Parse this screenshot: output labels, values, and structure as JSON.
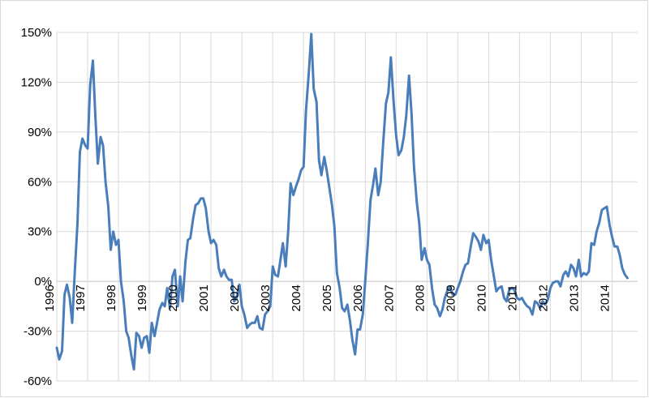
{
  "chart_data": {
    "type": "line",
    "title": "",
    "xlabel": "",
    "ylabel": "",
    "x_range": [
      1996.0,
      2014.83
    ],
    "ylim": [
      -60,
      150
    ],
    "y_ticks": [
      -60,
      -30,
      0,
      30,
      60,
      90,
      120,
      150
    ],
    "y_tick_labels": [
      "-60%",
      "-30%",
      "0%",
      "30%",
      "60%",
      "90%",
      "120%",
      "150%"
    ],
    "x_ticks": [
      1996,
      1997,
      1998,
      1999,
      2000,
      2001,
      2002,
      2003,
      2004,
      2005,
      2006,
      2007,
      2008,
      2009,
      2010,
      2011,
      2012,
      2013,
      2014
    ],
    "x_tick_labels": [
      "1996",
      "1997",
      "1998",
      "1999",
      "2000",
      "2001",
      "2002",
      "2003",
      "2004",
      "2005",
      "2006",
      "2007",
      "2008",
      "2009",
      "2010",
      "2011",
      "2012",
      "2013",
      "2014"
    ],
    "grid": {
      "horizontal": true,
      "vertical": true
    },
    "legend": "none",
    "series": [
      {
        "color": "#4a7ebb",
        "points": [
          [
            1996.0,
            -40
          ],
          [
            1996.08,
            -47
          ],
          [
            1996.17,
            -42
          ],
          [
            1996.25,
            -8
          ],
          [
            1996.33,
            -2
          ],
          [
            1996.42,
            -10
          ],
          [
            1996.5,
            -25
          ],
          [
            1996.58,
            5
          ],
          [
            1996.67,
            35
          ],
          [
            1996.75,
            78
          ],
          [
            1996.83,
            86
          ],
          [
            1996.92,
            82
          ],
          [
            1997.0,
            80
          ],
          [
            1997.08,
            118
          ],
          [
            1997.17,
            133
          ],
          [
            1997.25,
            100
          ],
          [
            1997.33,
            71
          ],
          [
            1997.42,
            87
          ],
          [
            1997.5,
            82
          ],
          [
            1997.58,
            60
          ],
          [
            1997.67,
            45
          ],
          [
            1997.75,
            19
          ],
          [
            1997.83,
            30
          ],
          [
            1997.92,
            22
          ],
          [
            1998.0,
            25
          ],
          [
            1998.08,
            0
          ],
          [
            1998.17,
            -12
          ],
          [
            1998.25,
            -30
          ],
          [
            1998.33,
            -34
          ],
          [
            1998.42,
            -45
          ],
          [
            1998.5,
            -53
          ],
          [
            1998.58,
            -31
          ],
          [
            1998.67,
            -33
          ],
          [
            1998.75,
            -40
          ],
          [
            1998.83,
            -34
          ],
          [
            1998.92,
            -33
          ],
          [
            1999.0,
            -43
          ],
          [
            1999.08,
            -25
          ],
          [
            1999.17,
            -33
          ],
          [
            1999.25,
            -25
          ],
          [
            1999.33,
            -17
          ],
          [
            1999.42,
            -13
          ],
          [
            1999.5,
            -15
          ],
          [
            1999.58,
            -4
          ],
          [
            1999.67,
            -16
          ],
          [
            1999.75,
            3
          ],
          [
            1999.83,
            7
          ],
          [
            1999.92,
            -15
          ],
          [
            2000.0,
            3
          ],
          [
            2000.08,
            -12
          ],
          [
            2000.17,
            12
          ],
          [
            2000.25,
            25
          ],
          [
            2000.33,
            26
          ],
          [
            2000.42,
            38
          ],
          [
            2000.5,
            46
          ],
          [
            2000.58,
            47
          ],
          [
            2000.67,
            50
          ],
          [
            2000.75,
            50
          ],
          [
            2000.83,
            44
          ],
          [
            2000.92,
            30
          ],
          [
            2001.0,
            23
          ],
          [
            2001.08,
            25
          ],
          [
            2001.17,
            22
          ],
          [
            2001.25,
            8
          ],
          [
            2001.33,
            3
          ],
          [
            2001.42,
            7
          ],
          [
            2001.5,
            3
          ],
          [
            2001.58,
            1
          ],
          [
            2001.67,
            1
          ],
          [
            2001.75,
            -12
          ],
          [
            2001.83,
            -10
          ],
          [
            2001.92,
            -2
          ],
          [
            2002.0,
            -15
          ],
          [
            2002.08,
            -20
          ],
          [
            2002.17,
            -28
          ],
          [
            2002.25,
            -26
          ],
          [
            2002.33,
            -25
          ],
          [
            2002.42,
            -25
          ],
          [
            2002.5,
            -21
          ],
          [
            2002.58,
            -28
          ],
          [
            2002.67,
            -29
          ],
          [
            2002.75,
            -20
          ],
          [
            2002.83,
            -18
          ],
          [
            2002.92,
            -15
          ],
          [
            2003.0,
            9
          ],
          [
            2003.08,
            4
          ],
          [
            2003.17,
            3
          ],
          [
            2003.25,
            13
          ],
          [
            2003.33,
            23
          ],
          [
            2003.42,
            9
          ],
          [
            2003.5,
            30
          ],
          [
            2003.58,
            59
          ],
          [
            2003.67,
            52
          ],
          [
            2003.75,
            57
          ],
          [
            2003.83,
            61
          ],
          [
            2003.92,
            67
          ],
          [
            2004.0,
            69
          ],
          [
            2004.08,
            103
          ],
          [
            2004.17,
            126
          ],
          [
            2004.25,
            149
          ],
          [
            2004.33,
            116
          ],
          [
            2004.42,
            108
          ],
          [
            2004.5,
            73
          ],
          [
            2004.58,
            64
          ],
          [
            2004.67,
            75
          ],
          [
            2004.75,
            67
          ],
          [
            2004.83,
            57
          ],
          [
            2004.92,
            46
          ],
          [
            2005.0,
            33
          ],
          [
            2005.08,
            5
          ],
          [
            2005.17,
            -4
          ],
          [
            2005.25,
            -16
          ],
          [
            2005.33,
            -18
          ],
          [
            2005.42,
            -14
          ],
          [
            2005.5,
            -23
          ],
          [
            2005.58,
            -35
          ],
          [
            2005.67,
            -44
          ],
          [
            2005.75,
            -29
          ],
          [
            2005.83,
            -29
          ],
          [
            2005.92,
            -20
          ],
          [
            2006.0,
            0
          ],
          [
            2006.08,
            22
          ],
          [
            2006.17,
            49
          ],
          [
            2006.25,
            58
          ],
          [
            2006.33,
            68
          ],
          [
            2006.42,
            52
          ],
          [
            2006.5,
            60
          ],
          [
            2006.58,
            83
          ],
          [
            2006.67,
            107
          ],
          [
            2006.75,
            114
          ],
          [
            2006.83,
            135
          ],
          [
            2006.92,
            108
          ],
          [
            2007.0,
            88
          ],
          [
            2007.08,
            76
          ],
          [
            2007.17,
            79
          ],
          [
            2007.25,
            87
          ],
          [
            2007.33,
            100
          ],
          [
            2007.42,
            124
          ],
          [
            2007.5,
            101
          ],
          [
            2007.58,
            69
          ],
          [
            2007.67,
            48
          ],
          [
            2007.75,
            35
          ],
          [
            2007.83,
            13
          ],
          [
            2007.92,
            20
          ],
          [
            2008.0,
            13
          ],
          [
            2008.08,
            10
          ],
          [
            2008.17,
            -5
          ],
          [
            2008.25,
            -14
          ],
          [
            2008.33,
            -16
          ],
          [
            2008.42,
            -21
          ],
          [
            2008.5,
            -17
          ],
          [
            2008.58,
            -10
          ],
          [
            2008.67,
            -5
          ],
          [
            2008.75,
            -3
          ],
          [
            2008.83,
            -8
          ],
          [
            2008.92,
            -8
          ],
          [
            2009.0,
            -4
          ],
          [
            2009.08,
            0
          ],
          [
            2009.17,
            6
          ],
          [
            2009.25,
            10
          ],
          [
            2009.33,
            11
          ],
          [
            2009.42,
            21
          ],
          [
            2009.5,
            29
          ],
          [
            2009.58,
            27
          ],
          [
            2009.67,
            24
          ],
          [
            2009.75,
            19
          ],
          [
            2009.83,
            28
          ],
          [
            2009.92,
            23
          ],
          [
            2010.0,
            25
          ],
          [
            2010.08,
            13
          ],
          [
            2010.17,
            3
          ],
          [
            2010.25,
            -6
          ],
          [
            2010.33,
            -4
          ],
          [
            2010.42,
            -3
          ],
          [
            2010.5,
            -10
          ],
          [
            2010.58,
            -12
          ],
          [
            2010.67,
            -5
          ],
          [
            2010.75,
            -4
          ],
          [
            2010.83,
            -5
          ],
          [
            2010.92,
            -10
          ],
          [
            2011.0,
            -11
          ],
          [
            2011.08,
            -10
          ],
          [
            2011.17,
            -13
          ],
          [
            2011.25,
            -15
          ],
          [
            2011.33,
            -16
          ],
          [
            2011.42,
            -20
          ],
          [
            2011.5,
            -12
          ],
          [
            2011.58,
            -13
          ],
          [
            2011.67,
            -16
          ],
          [
            2011.75,
            -12
          ],
          [
            2011.83,
            -14
          ],
          [
            2011.92,
            -11
          ],
          [
            2012.0,
            -4
          ],
          [
            2012.08,
            -1
          ],
          [
            2012.17,
            0
          ],
          [
            2012.25,
            0
          ],
          [
            2012.33,
            -3
          ],
          [
            2012.42,
            4
          ],
          [
            2012.5,
            6
          ],
          [
            2012.58,
            3
          ],
          [
            2012.67,
            10
          ],
          [
            2012.75,
            8
          ],
          [
            2012.83,
            3
          ],
          [
            2012.92,
            13
          ],
          [
            2013.0,
            3
          ],
          [
            2013.08,
            5
          ],
          [
            2013.17,
            4
          ],
          [
            2013.25,
            6
          ],
          [
            2013.33,
            23
          ],
          [
            2013.42,
            22
          ],
          [
            2013.5,
            30
          ],
          [
            2013.58,
            35
          ],
          [
            2013.67,
            43
          ],
          [
            2013.75,
            44
          ],
          [
            2013.83,
            45
          ],
          [
            2013.92,
            34
          ],
          [
            2014.0,
            27
          ],
          [
            2014.08,
            21
          ],
          [
            2014.17,
            21
          ],
          [
            2014.25,
            16
          ],
          [
            2014.33,
            8
          ],
          [
            2014.42,
            4
          ],
          [
            2014.5,
            2
          ]
        ]
      }
    ]
  }
}
